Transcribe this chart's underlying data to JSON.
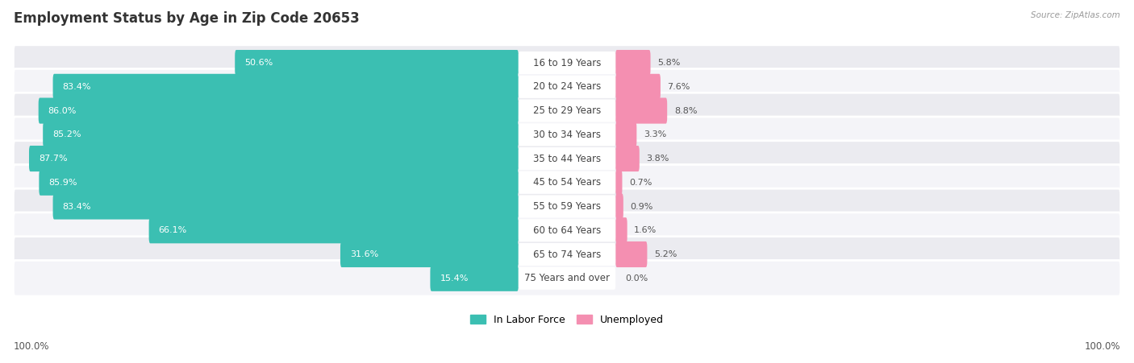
{
  "title": "Employment Status by Age in Zip Code 20653",
  "source": "Source: ZipAtlas.com",
  "categories": [
    "16 to 19 Years",
    "20 to 24 Years",
    "25 to 29 Years",
    "30 to 34 Years",
    "35 to 44 Years",
    "45 to 54 Years",
    "55 to 59 Years",
    "60 to 64 Years",
    "65 to 74 Years",
    "75 Years and over"
  ],
  "labor_force": [
    50.6,
    83.4,
    86.0,
    85.2,
    87.7,
    85.9,
    83.4,
    66.1,
    31.6,
    15.4
  ],
  "unemployed": [
    5.8,
    7.6,
    8.8,
    3.3,
    3.8,
    0.7,
    0.9,
    1.6,
    5.2,
    0.0
  ],
  "labor_force_color": "#3BBFB2",
  "unemployed_color": "#F48FB1",
  "row_colors": [
    "#EBEBF0",
    "#F4F4F8"
  ],
  "label_bg_color": "#FFFFFF",
  "title_fontsize": 12,
  "bar_label_fontsize": 8.0,
  "cat_label_fontsize": 8.5,
  "axis_label_left": "100.0%",
  "axis_label_right": "100.0%"
}
